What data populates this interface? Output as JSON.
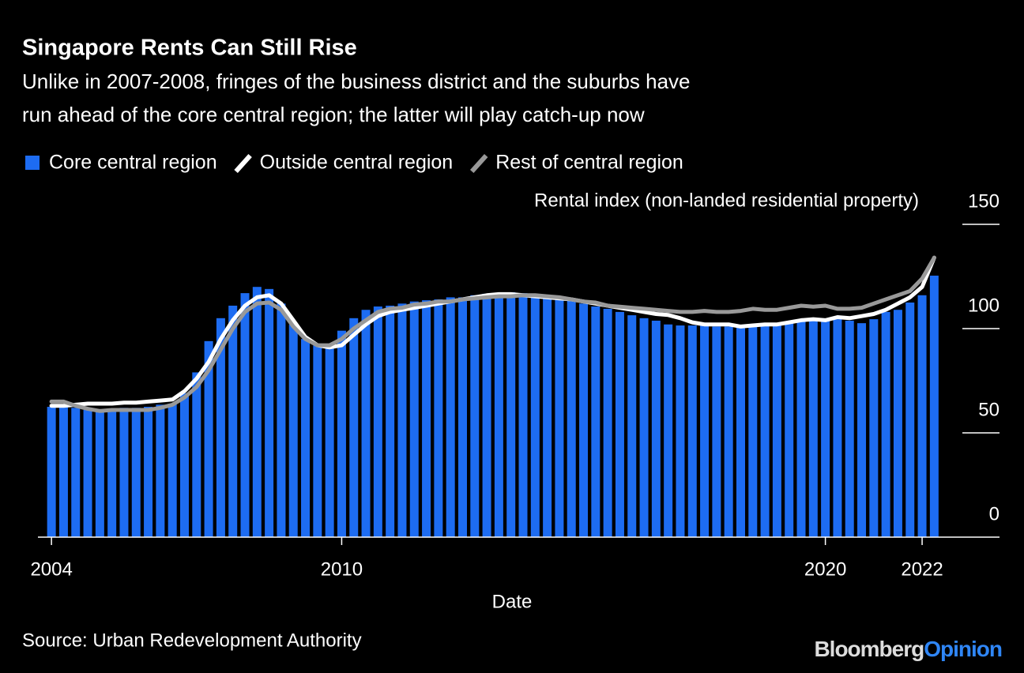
{
  "chart_data": {
    "type": "bar",
    "title": "Singapore Rents Can Still Rise",
    "subtitle": [
      "Unlike in 2007-2008, fringes of the business district and the suburbs have",
      "run ahead of the core central region; the latter will play catch-up now"
    ],
    "y_label": "Rental index (non-landed residential property)",
    "x_label": "Date",
    "source": "Source: Urban Redevelopment Authority",
    "brand": [
      "Bloomberg",
      "Opinion"
    ],
    "x": [
      2004,
      2004.25,
      2004.5,
      2004.75,
      2005,
      2005.25,
      2005.5,
      2005.75,
      2006,
      2006.25,
      2006.5,
      2006.75,
      2007,
      2007.25,
      2007.5,
      2007.75,
      2008,
      2008.25,
      2008.5,
      2008.75,
      2009,
      2009.25,
      2009.5,
      2009.75,
      2010,
      2010.25,
      2010.5,
      2010.75,
      2011,
      2011.25,
      2011.5,
      2011.75,
      2012,
      2012.25,
      2012.5,
      2012.75,
      2013,
      2013.25,
      2013.5,
      2013.75,
      2014,
      2014.25,
      2014.5,
      2014.75,
      2015,
      2015.25,
      2015.5,
      2015.75,
      2016,
      2016.25,
      2016.5,
      2016.75,
      2017,
      2017.25,
      2017.5,
      2017.75,
      2018,
      2018.25,
      2018.5,
      2018.75,
      2019,
      2019.25,
      2019.5,
      2019.75,
      2020,
      2020.25,
      2020.5,
      2020.75,
      2021,
      2021.25,
      2021.5,
      2021.75,
      2022,
      2022.25
    ],
    "series": [
      {
        "name": "Core central region",
        "type": "bar",
        "color": "#1d6cf2",
        "values": [
          62.5,
          62.5,
          62,
          61,
          61,
          61.5,
          62,
          62,
          62.5,
          63.5,
          64,
          69,
          79,
          94,
          105,
          111,
          117,
          120,
          119,
          112,
          102,
          95,
          92,
          92,
          99,
          105,
          109,
          110.6,
          111,
          112,
          113,
          113.6,
          114,
          115,
          115,
          116,
          116.7,
          117,
          117.4,
          117,
          116,
          115,
          114,
          113.6,
          112,
          110.6,
          109.5,
          108,
          106.4,
          105,
          103.8,
          102,
          101.5,
          101.5,
          101.5,
          101,
          101,
          101.5,
          102,
          101.5,
          102,
          103,
          103.4,
          103.8,
          104,
          104.5,
          103.8,
          102.6,
          104.5,
          108,
          109,
          112.5,
          116,
          125.4
        ]
      },
      {
        "name": "Outside central region",
        "type": "line",
        "color": "#ffffff",
        "values": [
          63,
          63,
          63.5,
          64,
          64,
          64,
          64.5,
          64.5,
          65,
          65.5,
          66,
          70,
          76,
          84,
          95,
          104,
          111,
          115,
          116,
          112,
          104,
          96,
          92,
          91,
          92,
          97,
          102,
          106,
          108,
          109,
          110,
          111,
          112,
          113,
          114,
          115,
          116,
          116.5,
          116.5,
          116,
          115.5,
          115,
          114.5,
          114,
          113,
          112,
          111,
          110,
          109,
          108,
          107,
          106.5,
          105,
          103,
          102,
          102,
          102,
          101,
          101.5,
          102,
          102,
          103,
          104,
          104.5,
          104,
          105.5,
          105,
          106,
          107,
          109,
          112,
          115,
          120,
          134
        ]
      },
      {
        "name": "Rest of central region",
        "type": "line",
        "color": "#999999",
        "values": [
          65,
          65,
          63,
          61.5,
          60.5,
          61,
          61,
          61,
          61,
          62,
          63.5,
          67,
          72,
          80,
          90,
          100,
          108,
          112,
          112.5,
          109,
          101,
          95,
          92,
          92,
          95,
          100,
          104,
          108,
          109.5,
          110,
          111.5,
          112,
          113,
          113,
          114,
          114.5,
          115,
          115.5,
          115.5,
          116,
          116,
          115.5,
          115,
          114,
          113,
          112.5,
          111,
          110.5,
          110,
          109.5,
          109,
          108.5,
          108,
          108,
          108.5,
          108,
          108,
          108.5,
          109.5,
          109,
          109,
          110,
          111,
          110.5,
          111,
          109.5,
          109.5,
          110,
          112,
          114,
          116,
          118,
          124,
          134
        ]
      }
    ],
    "xlim": [
      2003.72,
      2023.6
    ],
    "xticks": [
      2004,
      2010,
      2020,
      2022
    ],
    "ylim": [
      0,
      150
    ],
    "yticks": [
      0,
      50,
      100,
      150
    ]
  }
}
